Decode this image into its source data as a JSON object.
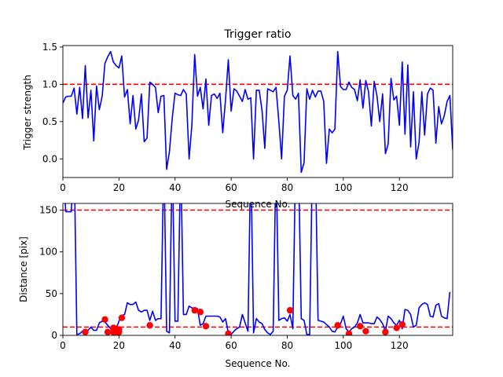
{
  "chart_data": [
    {
      "type": "line",
      "title": "Trigger ratio",
      "xlabel": "Sequence No.",
      "ylabel": "Trigger strength",
      "xlim": [
        0,
        139
      ],
      "ylim": [
        -0.25,
        1.52
      ],
      "xticks": [
        0,
        20,
        40,
        60,
        80,
        100,
        120
      ],
      "yticks": [
        0.0,
        0.5,
        1.0,
        1.5
      ],
      "ytick_labels": [
        "0.0",
        "0.5",
        "1.0",
        "1.5"
      ],
      "grid": false,
      "colors": {
        "line": "#0000ff",
        "reference": "#ff0000"
      },
      "reference_lines": [
        {
          "y": 1.0,
          "style": "dashed"
        }
      ],
      "series": [
        {
          "values": [
            0.75,
            0.83,
            0.84,
            0.84,
            0.95,
            0.6,
            0.96,
            0.54,
            1.25,
            0.55,
            0.92,
            0.24,
            0.98,
            0.66,
            0.84,
            1.28,
            1.37,
            1.44,
            1.3,
            1.25,
            1.22,
            1.38,
            0.83,
            0.93,
            0.47,
            0.85,
            0.4,
            0.52,
            0.87,
            0.23,
            0.28,
            1.03,
            1.0,
            0.96,
            0.62,
            0.84,
            0.85,
            -0.14,
            0.1,
            0.55,
            0.88,
            0.86,
            0.85,
            0.93,
            0.87,
            0.0,
            0.45,
            1.4,
            0.84,
            0.96,
            0.67,
            1.07,
            0.45,
            0.85,
            0.87,
            0.81,
            0.88,
            0.35,
            0.8,
            1.33,
            0.64,
            0.94,
            0.91,
            0.84,
            0.77,
            0.93,
            0.8,
            0.82,
            0.0,
            0.92,
            0.92,
            0.65,
            0.14,
            0.94,
            0.92,
            0.9,
            0.96,
            0.5,
            0.0,
            0.84,
            0.92,
            1.38,
            0.85,
            0.8,
            0.88,
            -0.18,
            -0.05,
            0.94,
            0.8,
            0.92,
            0.83,
            0.91,
            0.91,
            0.77,
            -0.06,
            0.4,
            0.35,
            0.4,
            1.44,
            0.97,
            0.93,
            0.93,
            1.03,
            0.96,
            0.93,
            0.78,
            1.06,
            0.68,
            1.05,
            0.9,
            0.44,
            1.04,
            0.84,
            0.5,
            0.87,
            0.07,
            0.2,
            1.08,
            0.79,
            0.84,
            0.45,
            1.3,
            0.33,
            1.26,
            0.16,
            0.9,
            0.0,
            0.22,
            0.9,
            0.32,
            0.87,
            0.95,
            0.92,
            0.21,
            0.7,
            0.47,
            0.58,
            0.77,
            0.85,
            0.13,
            0.85
          ]
        }
      ]
    },
    {
      "type": "line",
      "title": "",
      "xlabel": "Sequence No.",
      "ylabel": "Distance [pix]",
      "xlim": [
        0,
        139
      ],
      "ylim": [
        0,
        158
      ],
      "xticks": [
        0,
        20,
        40,
        60,
        80,
        100,
        120
      ],
      "yticks": [
        0,
        50,
        100,
        150
      ],
      "grid": false,
      "colors": {
        "line": "#0000ff",
        "reference": "#ff0000",
        "markers": "#ff0000"
      },
      "reference_lines": [
        {
          "y": 150,
          "style": "dashed"
        },
        {
          "y": 10,
          "style": "dashed"
        }
      ],
      "series": [
        {
          "values": [
            300,
            148,
            148,
            148,
            300,
            1,
            2,
            5,
            5,
            6,
            10,
            6,
            6,
            15,
            17,
            16,
            12,
            8,
            5,
            8,
            17,
            24,
            25,
            39,
            37,
            37,
            40,
            30,
            28,
            30,
            30,
            18,
            29,
            18,
            20,
            20,
            300,
            5,
            3,
            300,
            17,
            17,
            300,
            25,
            25,
            35,
            33,
            32,
            32,
            12,
            14,
            23,
            23,
            23,
            23,
            23,
            22,
            16,
            20,
            3,
            1,
            5,
            8,
            10,
            25,
            15,
            5,
            300,
            3,
            20,
            16,
            14,
            7,
            3,
            1,
            5,
            300,
            18,
            20,
            21,
            17,
            25,
            8,
            300,
            300,
            20,
            18,
            1,
            1,
            300,
            300,
            18,
            17,
            16,
            13,
            10,
            5,
            4,
            10,
            14,
            23,
            8,
            4,
            8,
            10,
            15,
            25,
            15,
            15,
            15,
            14,
            14,
            22,
            19,
            14,
            5,
            23,
            20,
            15,
            12,
            18,
            8,
            31,
            30,
            25,
            10,
            12,
            33,
            37,
            39,
            37,
            23,
            22,
            36,
            38,
            23,
            21,
            20,
            52
          ],
          "y_clipped_above": 158
        },
        {
          "name": "",
          "type": "scatter",
          "x": [
            8,
            15,
            16,
            18,
            18,
            19,
            19,
            20,
            20,
            21,
            31,
            47,
            49,
            51,
            59,
            81,
            98,
            102,
            106,
            108,
            115,
            119,
            121
          ],
          "values": [
            4,
            19,
            4,
            4,
            9,
            4,
            8,
            4,
            7,
            21,
            12,
            30,
            28,
            11,
            2,
            30,
            12,
            2,
            11,
            5,
            4,
            9,
            13
          ]
        }
      ]
    }
  ]
}
